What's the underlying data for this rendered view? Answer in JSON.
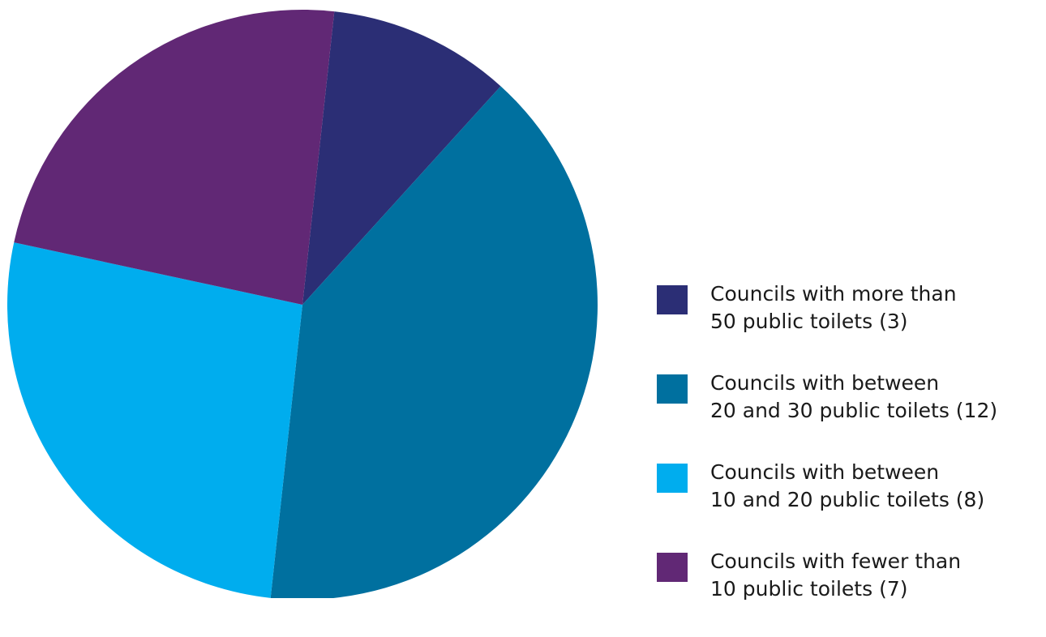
{
  "chart_data": {
    "type": "pie",
    "title": "",
    "legend_position": "right",
    "slices": [
      {
        "lines": [
          "Councils with more than",
          "50 public toilets (3)"
        ],
        "value": 3,
        "color": "#2b2e75"
      },
      {
        "lines": [
          "Councils with between",
          "20 and 30 public toilets (12)"
        ],
        "value": 12,
        "color": "#00709f"
      },
      {
        "lines": [
          "Councils with between",
          "10 and 20 public toilets (8)"
        ],
        "value": 8,
        "color": "#00adee"
      },
      {
        "lines": [
          "Councils with fewer than",
          "10 public toilets (7)"
        ],
        "value": 7,
        "color": "#612875"
      }
    ]
  }
}
